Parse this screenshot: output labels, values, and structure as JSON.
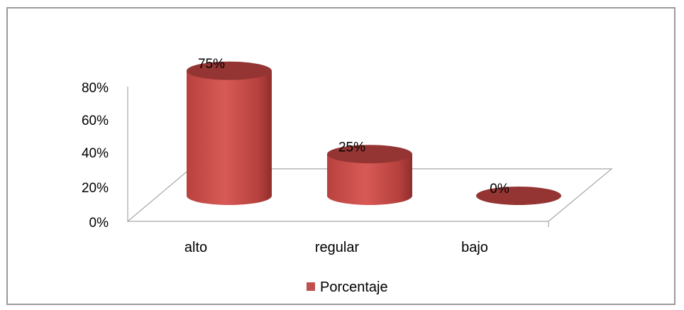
{
  "chart_data": {
    "type": "bar",
    "style": "3d-cylinder",
    "categories": [
      "alto",
      "regular",
      "bajo"
    ],
    "series": [
      {
        "name": "Porcentaje",
        "values": [
          75,
          25,
          0
        ],
        "color": "#c0504d"
      }
    ],
    "data_labels": [
      "75%",
      "25%",
      "0%"
    ],
    "y_ticks": [
      "0%",
      "20%",
      "40%",
      "60%",
      "80%"
    ],
    "ylim": [
      0,
      80
    ],
    "grid": false,
    "legend": "bottom"
  }
}
